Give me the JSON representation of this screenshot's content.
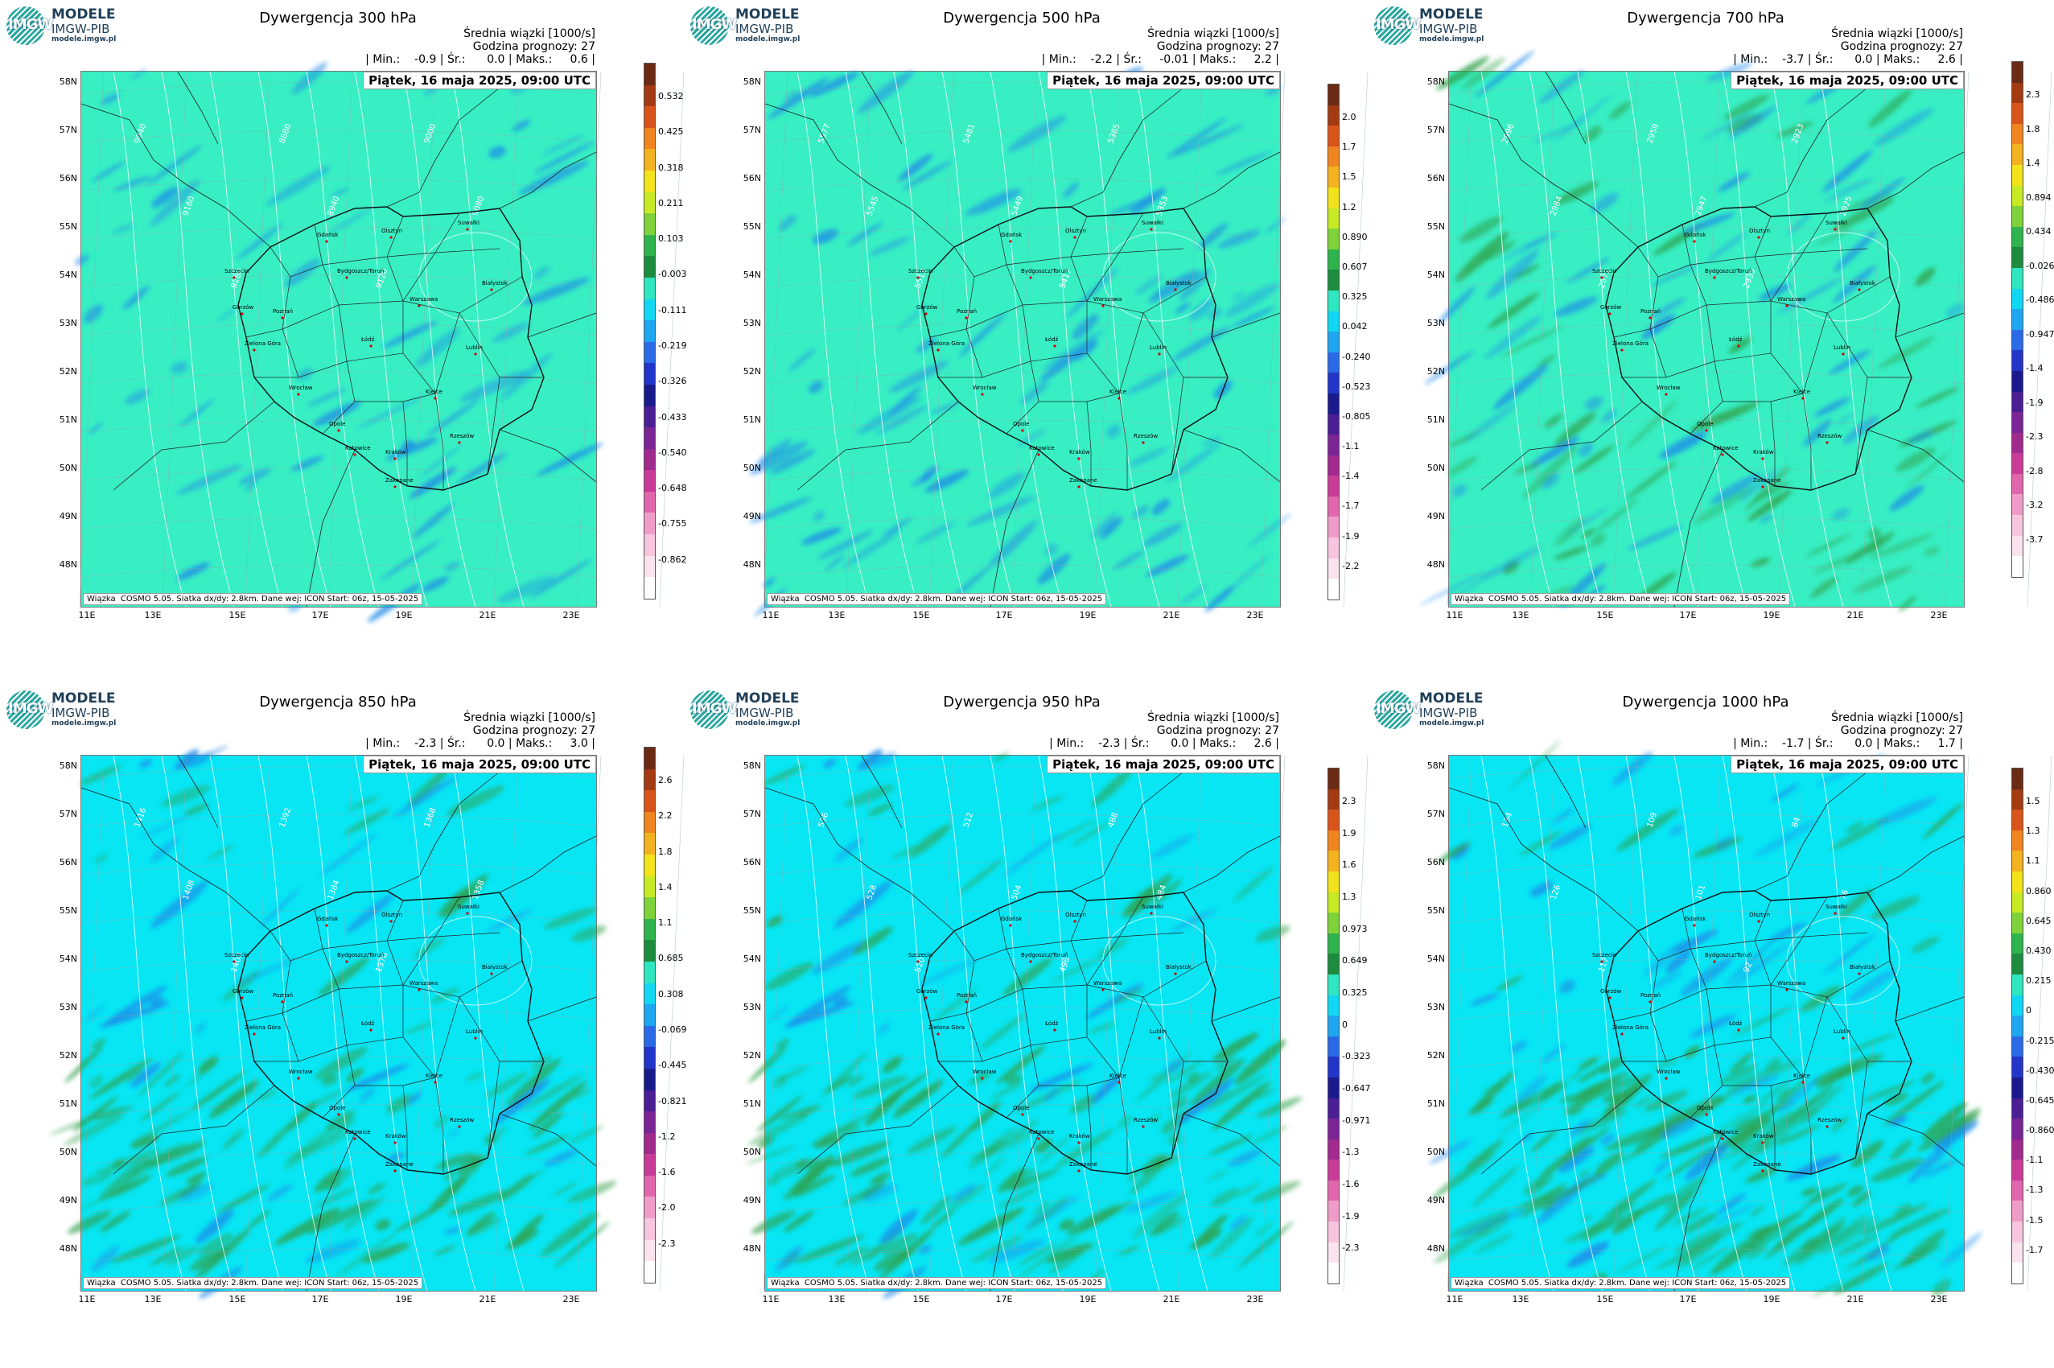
{
  "logo": {
    "letters": "IMGW",
    "line1": "MODELE",
    "line2": "IMGW-PIB",
    "line3": "modele.imgw.pl"
  },
  "common": {
    "subtitle": "Średnia wiązki [1000/s]",
    "forecast": "Godzina prognozy: 27",
    "date": "Piątek, 16 maja 2025, 09:00 UTC",
    "footer": "Wiązka  COSMO 5.05. Siatka dx/dy: 2.8km. Dane wej: ICON Start: 06z, 15-05-2025",
    "lat_labels": [
      "58N",
      "57N",
      "56N",
      "55N",
      "54N",
      "53N",
      "52N",
      "51N",
      "50N",
      "49N",
      "48N"
    ],
    "lon_labels": [
      "11E",
      "13E",
      "15E",
      "17E",
      "19E",
      "21E",
      "23E"
    ]
  },
  "colors": {
    "bg_top": "#38efc4",
    "bg_bottom": "#08e6f4",
    "blue": "#1e88e8",
    "green": "#2fa04a",
    "contour": "#ffffff"
  },
  "panels": [
    {
      "title": "Dywergencja 300 hPa",
      "stats": "| Min.:    -0.9 | Śr.:      0.0 | Maks.:     0.6 |",
      "colorbar": [
        "0.532",
        "0.425",
        "0.318",
        "0.211",
        "0.103",
        "-0.003",
        "-0.111",
        "-0.219",
        "-0.326",
        "-0.433",
        "-0.540",
        "-0.648",
        "-0.755",
        "-0.862"
      ],
      "isolines": [
        "9040",
        "9160",
        "9280",
        "8880",
        "8940",
        "9120",
        "9000",
        "9080"
      ]
    },
    {
      "title": "Dywergencja 500 hPa",
      "stats": "| Min.:    -2.2 | Śr.:     -0.01 | Maks.:     2.2 |",
      "colorbar": [
        "2.0",
        "1.7",
        "1.5",
        "1.2",
        "0.890",
        "0.607",
        "0.325",
        "0.042",
        "-0.240",
        "-0.523",
        "-0.805",
        "-1.1",
        "-1.4",
        "-1.7",
        "-1.9",
        "-2.2"
      ],
      "isolines": [
        "5577",
        "5545",
        "5513",
        "5481",
        "5449",
        "5417",
        "5385",
        "5353",
        "5140"
      ]
    },
    {
      "title": "Dywergencja 700 hPa",
      "stats": "| Min.:    -3.7 | Śr.:      0.0 | Maks.:     2.6 |",
      "colorbar": [
        "2.3",
        "1.8",
        "1.4",
        "0.894",
        "0.434",
        "-0.026",
        "-0.486",
        "-0.947",
        "-1.4",
        "-1.9",
        "-2.3",
        "-2.8",
        "-3.2",
        "-3.7"
      ],
      "isolines": [
        "2996",
        "2984",
        "2971",
        "2959",
        "2947",
        "2935",
        "2923",
        "2925"
      ]
    },
    {
      "title": "Dywergencja 850 hPa",
      "stats": "| Min.:    -2.3 | Śr.:      0.0 | Maks.:     3.0 |",
      "colorbar": [
        "2.6",
        "2.2",
        "1.8",
        "1.4",
        "1.1",
        "0.685",
        "0.308",
        "-0.069",
        "-0.445",
        "-0.821",
        "-1.2",
        "-1.6",
        "-2.0",
        "-2.3"
      ],
      "isolines": [
        "1416",
        "1408",
        "1400",
        "1392",
        "1384",
        "1376",
        "1368",
        "1358"
      ]
    },
    {
      "title": "Dywergencja 950 hPa",
      "stats": "| Min.:    -2.3 | Śr.:      0.0 | Maks.:     2.6 |",
      "colorbar": [
        "2.3",
        "1.9",
        "1.6",
        "1.3",
        "0.973",
        "0.649",
        "0.325",
        "0",
        "-0.323",
        "-0.647",
        "-0.971",
        "-1.3",
        "-1.6",
        "-1.9",
        "-2.3"
      ],
      "isolines": [
        "536",
        "528",
        "520",
        "512",
        "504",
        "496",
        "488",
        "484"
      ]
    },
    {
      "title": "Dywergencja 1000 hPa",
      "stats": "| Min.:    -1.7 | Śr.:      0.0 | Maks.:     1.7 |",
      "colorbar": [
        "1.5",
        "1.3",
        "1.1",
        "0.860",
        "0.645",
        "0.430",
        "0.215",
        "0",
        "-0.215",
        "-0.430",
        "-0.645",
        "-0.860",
        "-1.1",
        "-1.3",
        "-1.5",
        "-1.7"
      ],
      "isolines": [
        "134",
        "126",
        "117",
        "109",
        "101",
        "92",
        "84",
        "76"
      ]
    }
  ],
  "cities": [
    "Gdańsk",
    "Olsztyn",
    "Suwałki",
    "Białystok",
    "Szczecin",
    "Bydgoszcz/Toruń",
    "Gorzów",
    "Poznań",
    "Warszawa",
    "Zielona Góra",
    "Łódź",
    "Lublin",
    "Wrocław",
    "Kielce",
    "Opole",
    "Katowice",
    "Kraków",
    "Rzeszów",
    "Zakopane"
  ]
}
